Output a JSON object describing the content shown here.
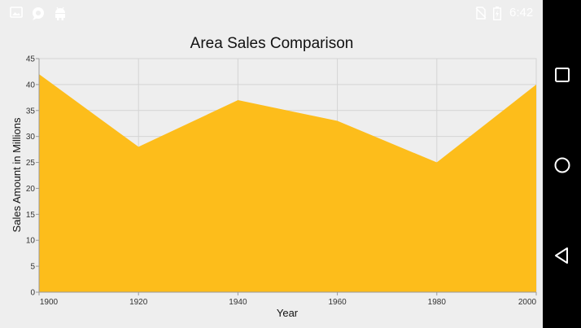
{
  "status_bar": {
    "time": "6:42",
    "icons": [
      "image-icon",
      "chat-bubble-icon",
      "android-icon",
      "no-sim-icon",
      "battery-charging-icon"
    ]
  },
  "nav_bar": {
    "buttons": [
      "recent-apps-button",
      "home-button",
      "back-button"
    ]
  },
  "chart_data": {
    "type": "area",
    "title": "Area Sales Comparison",
    "xlabel": "Year",
    "ylabel": "Sales Amount in Millions",
    "x": [
      1900,
      1920,
      1940,
      1960,
      1980,
      2000
    ],
    "series": [
      {
        "values": [
          42,
          28,
          37,
          33,
          25,
          40
        ]
      }
    ],
    "xlim": [
      1900,
      2000
    ],
    "ylim": [
      0,
      45
    ],
    "x_ticks": [
      1900,
      1920,
      1940,
      1960,
      1980,
      2000
    ],
    "y_ticks": [
      0,
      5,
      10,
      15,
      20,
      25,
      30,
      35,
      40,
      45
    ],
    "grid": true,
    "legend": "none",
    "colors": {
      "area_fill": "#fdbd1b",
      "grid": "#d4d4d4",
      "axis": "#999999"
    }
  }
}
